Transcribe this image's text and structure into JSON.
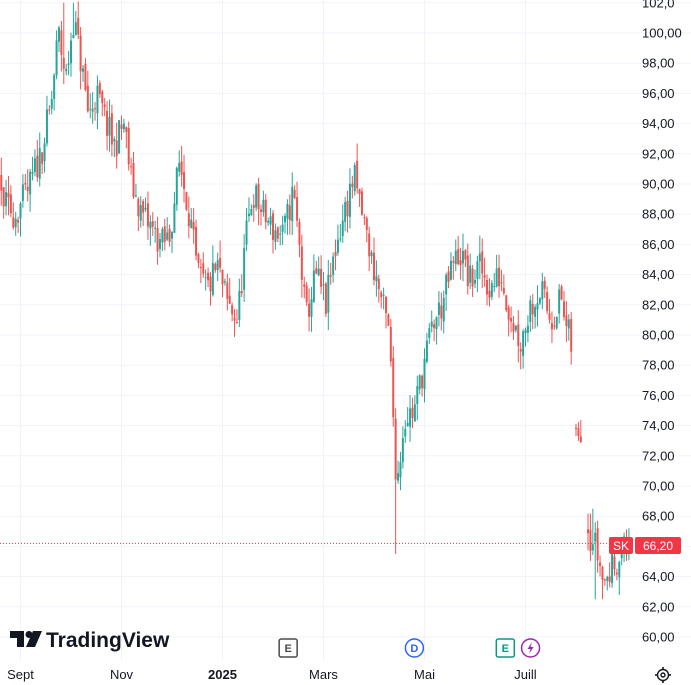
{
  "brand": {
    "name": "TradingView"
  },
  "colors": {
    "up": "#26a69a",
    "down": "#ef5350",
    "grid": "#f0f3fa",
    "text": "#131722",
    "price_line": "#f23645"
  },
  "last_price": {
    "symbol": "SK",
    "value": "66,20"
  },
  "events": [
    {
      "letter": "E",
      "type": "earnings",
      "month_index": 6.3
    },
    {
      "letter": "D",
      "type": "dividend",
      "month_index": 8.8
    },
    {
      "letter": "E",
      "type": "earnings",
      "month_index": 10.6
    },
    {
      "icon": "lightning-icon",
      "type": "split",
      "month_index": 11.1
    }
  ],
  "chart_data": {
    "type": "candlestick",
    "title": "",
    "xlabel": "",
    "ylabel": "",
    "x_ticks": [
      "Sept",
      "Nov",
      "2025",
      "Mars",
      "Mai",
      "Juill"
    ],
    "x_tick_month_index": [
      1,
      3,
      5,
      7,
      9,
      11
    ],
    "y_ticks": [
      "60,00",
      "62,00",
      "64,00",
      "66,00",
      "68,00",
      "70,00",
      "72,00",
      "74,00",
      "76,00",
      "78,00",
      "80,00",
      "82,00",
      "84,00",
      "86,00",
      "88,00",
      "90,00",
      "92,00",
      "94,00",
      "96,00",
      "98,00",
      "100,00",
      "102,0"
    ],
    "y_tick_values": [
      60,
      62,
      64,
      66,
      68,
      70,
      72,
      74,
      76,
      78,
      80,
      82,
      84,
      86,
      88,
      90,
      92,
      94,
      96,
      98,
      100,
      102
    ],
    "ylim": [
      59.5,
      102.5
    ],
    "grid": true,
    "series": [
      {
        "anchors": [
          [
            0.0,
            87.0
          ],
          [
            0.25,
            89.0
          ],
          [
            0.5,
            90.5
          ],
          [
            0.7,
            88.5
          ],
          [
            0.9,
            88.0
          ],
          [
            1.15,
            89.5
          ],
          [
            1.4,
            92.0
          ],
          [
            1.6,
            95.0
          ],
          [
            1.75,
            100.0
          ],
          [
            1.9,
            97.0
          ],
          [
            2.05,
            101.0
          ],
          [
            2.2,
            98.0
          ],
          [
            2.35,
            94.5
          ],
          [
            2.5,
            96.0
          ],
          [
            2.7,
            94.0
          ],
          [
            2.85,
            92.5
          ],
          [
            3.05,
            94.0
          ],
          [
            3.2,
            90.0
          ],
          [
            3.4,
            88.0
          ],
          [
            3.6,
            87.0
          ],
          [
            3.8,
            86.0
          ],
          [
            3.95,
            86.5
          ],
          [
            4.15,
            91.5
          ],
          [
            4.35,
            88.0
          ],
          [
            4.5,
            84.0
          ],
          [
            4.7,
            83.0
          ],
          [
            4.9,
            84.5
          ],
          [
            5.1,
            82.0
          ],
          [
            5.3,
            81.0
          ],
          [
            5.45,
            86.0
          ],
          [
            5.6,
            89.5
          ],
          [
            5.8,
            88.0
          ],
          [
            6.0,
            87.0
          ],
          [
            6.2,
            86.5
          ],
          [
            6.4,
            89.5
          ],
          [
            6.55,
            85.0
          ],
          [
            6.65,
            81.0
          ],
          [
            6.85,
            84.0
          ],
          [
            7.05,
            82.0
          ],
          [
            7.25,
            86.0
          ],
          [
            7.45,
            88.5
          ],
          [
            7.6,
            90.5
          ],
          [
            7.8,
            87.5
          ],
          [
            7.95,
            85.0
          ],
          [
            8.1,
            83.0
          ],
          [
            8.3,
            80.0
          ],
          [
            8.45,
            70.0
          ],
          [
            8.6,
            74.5
          ],
          [
            8.8,
            75.0
          ],
          [
            8.95,
            77.5
          ],
          [
            9.15,
            80.5
          ],
          [
            9.35,
            82.0
          ],
          [
            9.55,
            84.5
          ],
          [
            9.7,
            85.5
          ],
          [
            9.9,
            83.5
          ],
          [
            10.1,
            84.5
          ],
          [
            10.3,
            83.0
          ],
          [
            10.5,
            84.0
          ],
          [
            10.7,
            81.5
          ],
          [
            10.9,
            79.5
          ],
          [
            11.1,
            82.0
          ],
          [
            11.3,
            83.0
          ],
          [
            11.5,
            81.0
          ],
          [
            11.7,
            82.5
          ],
          [
            11.8,
            80.5
          ],
          [
            11.9,
            79.5
          ],
          [
            12.0,
            73.5
          ],
          [
            12.1,
            74.0
          ],
          [
            12.25,
            67.0
          ],
          [
            12.4,
            66.0
          ],
          [
            12.55,
            63.5
          ],
          [
            12.7,
            64.5
          ],
          [
            12.85,
            65.5
          ],
          [
            13.05,
            66.2
          ]
        ],
        "gaps": [
          [
            11.92,
            11.98
          ],
          [
            12.12,
            12.22
          ]
        ],
        "notable_lows": [
          [
            8.42,
            65.5
          ],
          [
            12.37,
            62.5
          ],
          [
            12.5,
            62.5
          ]
        ],
        "notable_highs": [
          [
            1.85,
            102.0
          ],
          [
            2.05,
            102.0
          ],
          [
            12.35,
            68.5
          ]
        ]
      }
    ]
  }
}
